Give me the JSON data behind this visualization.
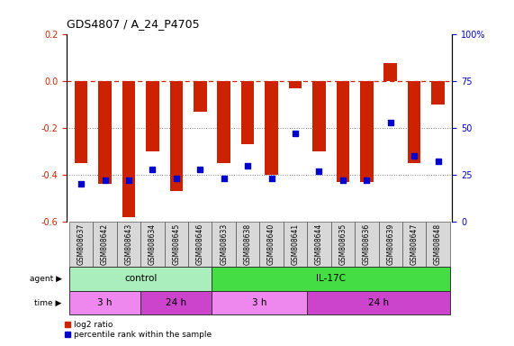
{
  "title": "GDS4807 / A_24_P4705",
  "samples": [
    "GSM808637",
    "GSM808642",
    "GSM808643",
    "GSM808634",
    "GSM808645",
    "GSM808646",
    "GSM808633",
    "GSM808638",
    "GSM808640",
    "GSM808641",
    "GSM808644",
    "GSM808635",
    "GSM808636",
    "GSM808639",
    "GSM808647",
    "GSM808648"
  ],
  "log2_ratio": [
    -0.35,
    -0.44,
    -0.58,
    -0.3,
    -0.47,
    -0.13,
    -0.35,
    -0.27,
    -0.4,
    -0.03,
    -0.3,
    -0.43,
    -0.43,
    0.08,
    -0.35,
    -0.1
  ],
  "percentile": [
    20,
    22,
    22,
    28,
    23,
    28,
    23,
    30,
    23,
    47,
    27,
    22,
    22,
    53,
    35,
    32
  ],
  "ylim": [
    -0.6,
    0.2
  ],
  "yticks_left": [
    -0.6,
    -0.4,
    -0.2,
    0.0,
    0.2
  ],
  "yticks_right": [
    0,
    25,
    50,
    75,
    100
  ],
  "yticks_right_labels": [
    "0",
    "25",
    "50",
    "75",
    "100%"
  ],
  "hlines": [
    -0.4,
    -0.2
  ],
  "dashed_line": 0.0,
  "bar_color": "#cc2200",
  "dot_color": "#0000cc",
  "agent_groups": [
    {
      "label": "control",
      "start": 0,
      "end": 6,
      "color": "#aaeebb"
    },
    {
      "label": "IL-17C",
      "start": 6,
      "end": 16,
      "color": "#44dd44"
    }
  ],
  "time_groups": [
    {
      "label": "3 h",
      "start": 0,
      "end": 3,
      "color": "#ee88ee"
    },
    {
      "label": "24 h",
      "start": 3,
      "end": 6,
      "color": "#cc44cc"
    },
    {
      "label": "3 h",
      "start": 6,
      "end": 10,
      "color": "#ee88ee"
    },
    {
      "label": "24 h",
      "start": 10,
      "end": 16,
      "color": "#cc44cc"
    }
  ],
  "legend_items": [
    {
      "label": "log2 ratio",
      "color": "#cc2200"
    },
    {
      "label": "percentile rank within the sample",
      "color": "#0000cc"
    }
  ],
  "bar_width": 0.55,
  "dot_size": 18,
  "label_fontsize": 5.5,
  "tick_fontsize": 7,
  "row_fontsize": 7.5
}
